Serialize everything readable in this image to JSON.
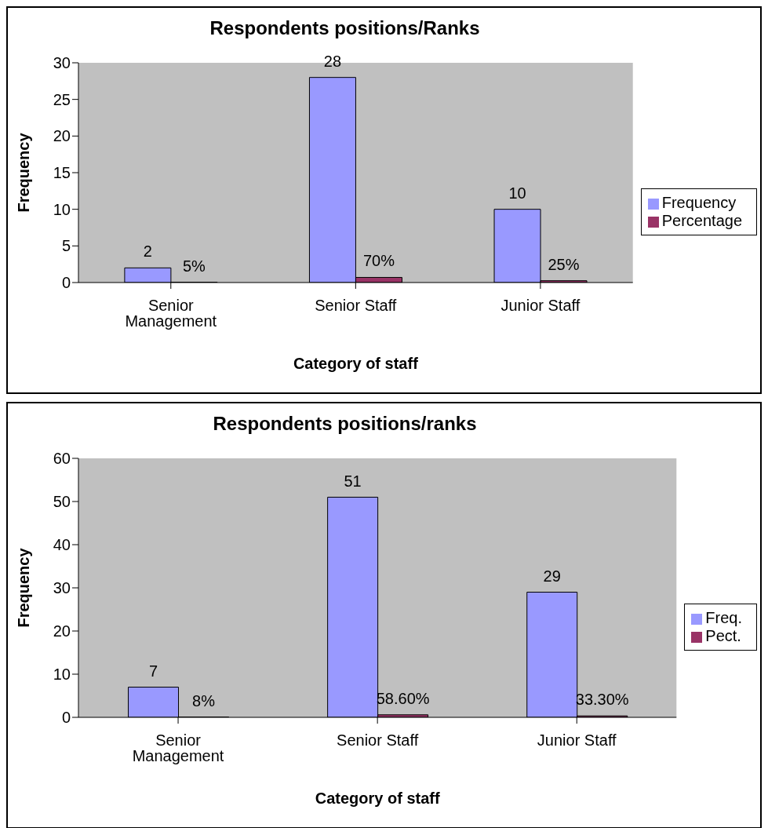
{
  "chart_data": [
    {
      "type": "bar",
      "title": "Respondents positions/Ranks",
      "xlabel": "Category of staff",
      "ylabel": "Frequency",
      "categories": [
        "Senior Management",
        "Senior Staff",
        "Junior Staff"
      ],
      "series": [
        {
          "name": "Frequency",
          "color": "#9999ff",
          "values": [
            2,
            28,
            10
          ],
          "value_labels": [
            "2",
            "28",
            "10"
          ]
        },
        {
          "name": "Percentage",
          "color": "#993366",
          "values": [
            0.05,
            0.7,
            0.25
          ],
          "value_labels": [
            "5%",
            "70%",
            "25%"
          ]
        }
      ],
      "ylim": [
        0,
        30
      ],
      "yticks": [
        0,
        5,
        10,
        15,
        20,
        25,
        30
      ],
      "legend": "right"
    },
    {
      "type": "bar",
      "title": "Respondents positions/ranks",
      "xlabel": "Category of staff",
      "ylabel": "Frequency",
      "categories": [
        "Senior Management",
        "Senior Staff",
        "Junior Staff"
      ],
      "series": [
        {
          "name": "Freq.",
          "color": "#9999ff",
          "values": [
            7,
            51,
            29
          ],
          "value_labels": [
            "7",
            "51",
            "29"
          ]
        },
        {
          "name": "Pect.",
          "color": "#993366",
          "values": [
            0.08,
            0.586,
            0.333
          ],
          "value_labels": [
            "8%",
            "58.60%",
            "33.30%"
          ]
        }
      ],
      "ylim": [
        0,
        60
      ],
      "yticks": [
        0,
        10,
        20,
        30,
        40,
        50,
        60
      ],
      "legend": "right"
    }
  ]
}
